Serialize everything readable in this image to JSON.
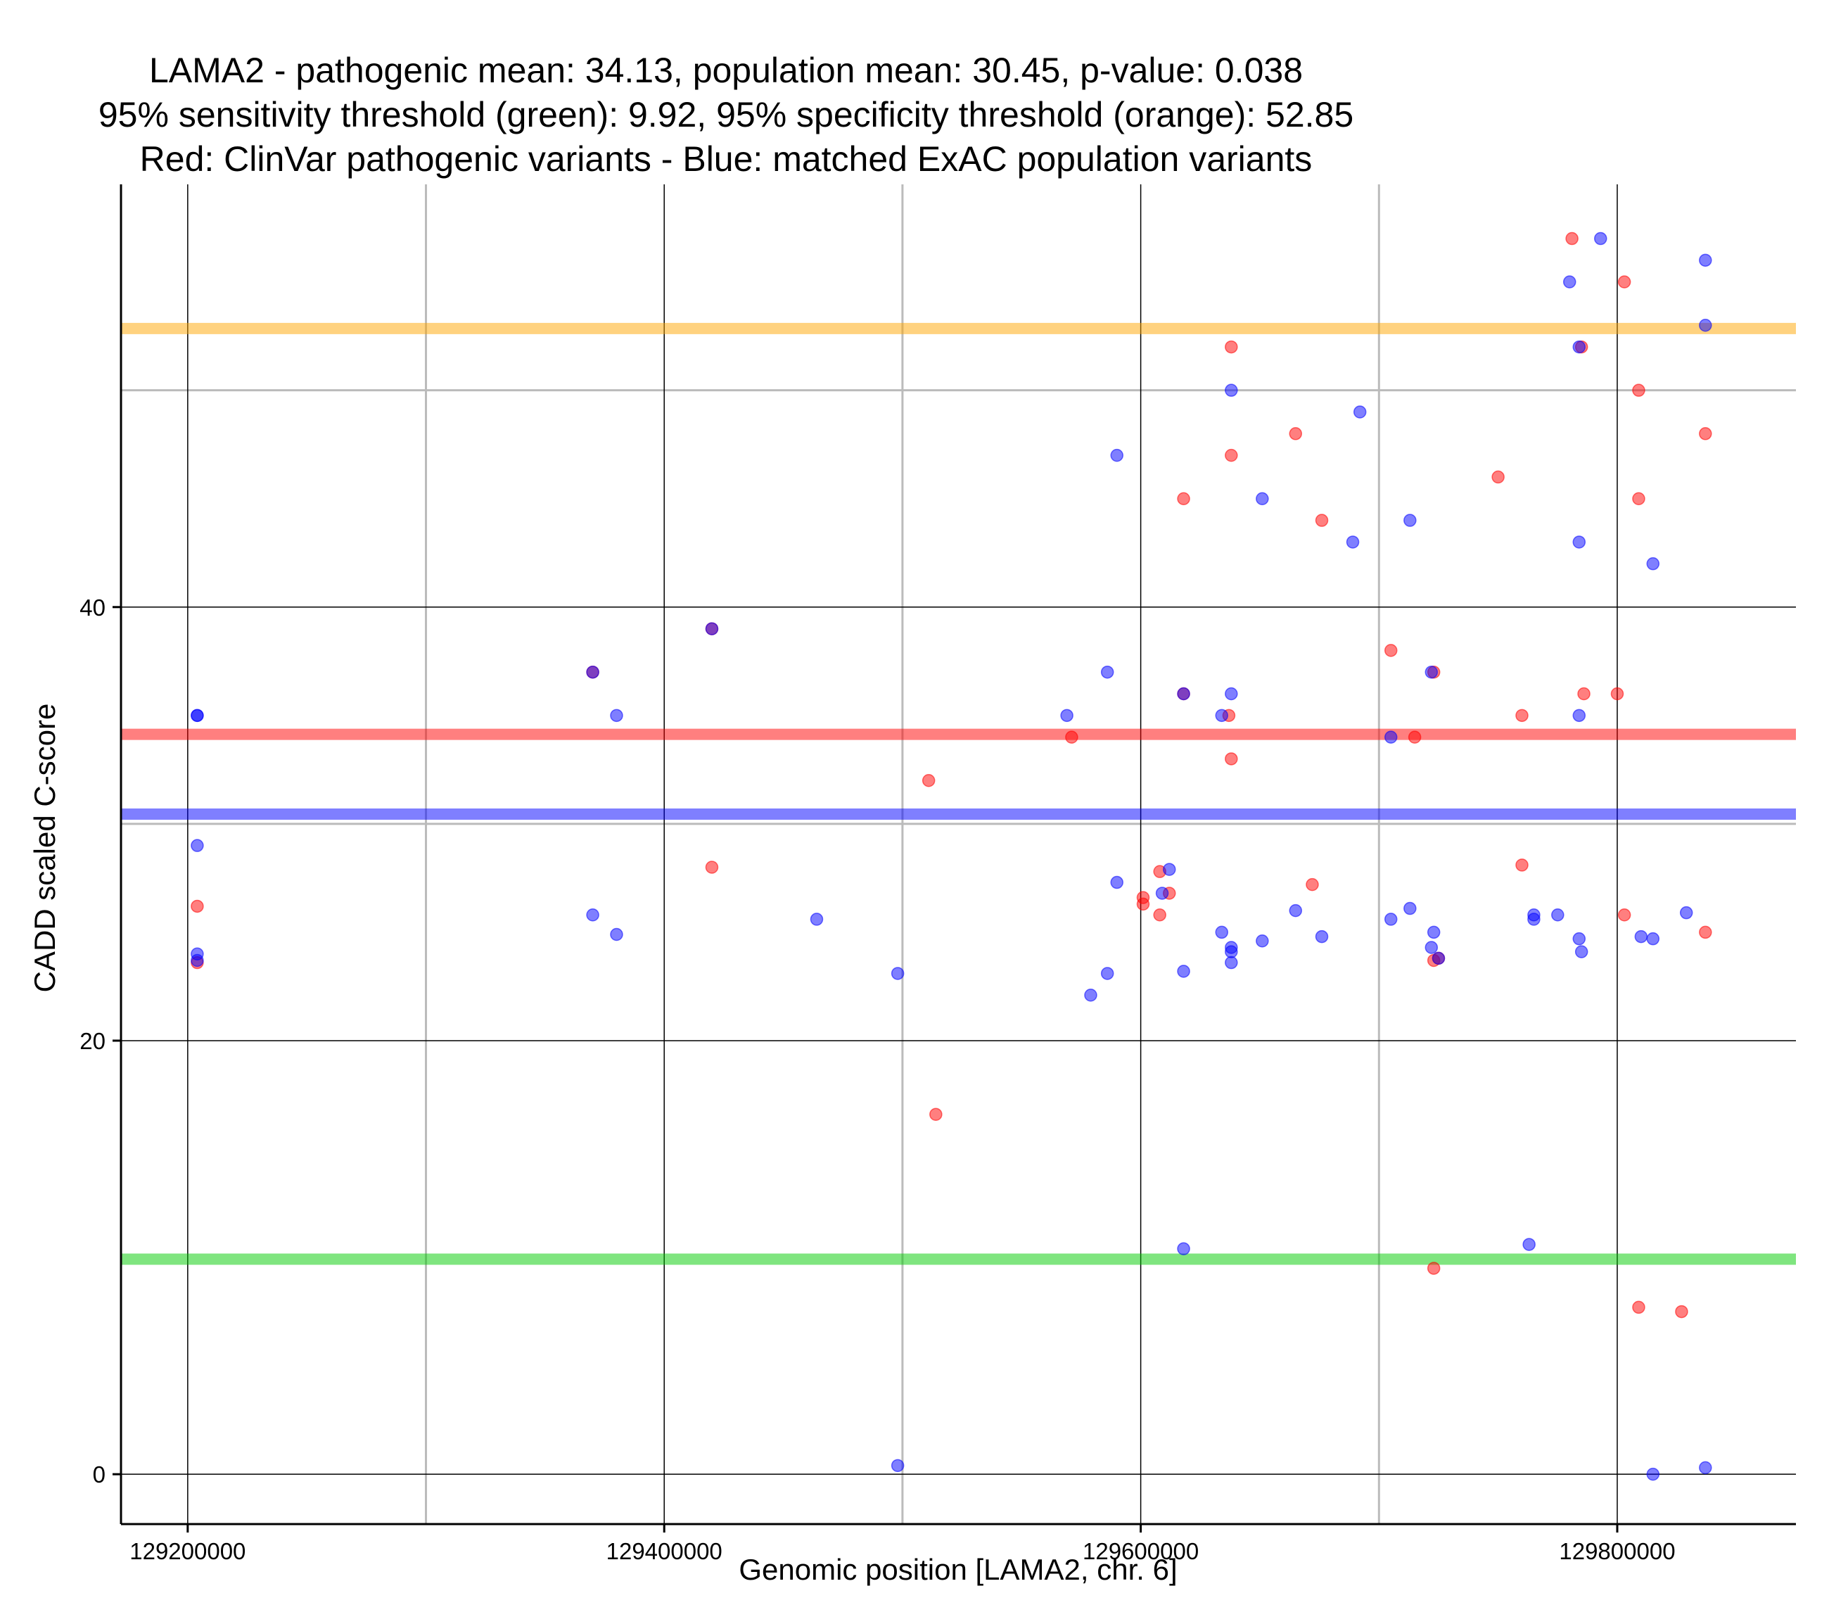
{
  "chart_data": {
    "type": "scatter",
    "title_lines": [
      "LAMA2 - pathogenic mean: 34.13, population mean: 30.45, p-value: 0.038",
      "95% sensitivity threshold (green): 9.92, 95% specificity threshold (orange): 52.85",
      "Red: ClinVar pathogenic variants - Blue: matched ExAC population variants"
    ],
    "xlabel": "Genomic position [LAMA2, chr. 6]",
    "ylabel": "CADD scaled C-score",
    "xlim": [
      129172000,
      129875000
    ],
    "ylim": [
      -2.3,
      59.5
    ],
    "x_major_ticks": [
      129200000,
      129400000,
      129600000,
      129800000
    ],
    "x_tick_labels": [
      "129200000",
      "129400000",
      "129600000",
      "129800000"
    ],
    "x_minor_gridlines": [
      129300000,
      129500000,
      129700000
    ],
    "y_major_ticks": [
      0,
      20,
      40
    ],
    "y_tick_labels": [
      "0",
      "20",
      "40"
    ],
    "y_minor_gridlines": [
      30,
      50
    ],
    "hlines": [
      {
        "name": "specificity-threshold",
        "value": 52.85,
        "color": "#FFA500"
      },
      {
        "name": "pathogenic-mean",
        "value": 34.13,
        "color": "#FF0000"
      },
      {
        "name": "population-mean",
        "value": 30.45,
        "color": "#0000FF"
      },
      {
        "name": "sensitivity-threshold",
        "value": 9.92,
        "color": "#00CC00"
      }
    ],
    "series": [
      {
        "name": "ClinVar pathogenic variants",
        "color": "#FF0000",
        "points": [
          [
            129204000,
            26.2
          ],
          [
            129204000,
            23.6
          ],
          [
            129370000,
            37
          ],
          [
            129420000,
            28
          ],
          [
            129420000,
            39
          ],
          [
            129511000,
            32
          ],
          [
            129514000,
            16.6
          ],
          [
            129571000,
            34
          ],
          [
            129601000,
            26.6
          ],
          [
            129601000,
            26.3
          ],
          [
            129608000,
            27.8
          ],
          [
            129608000,
            25.8
          ],
          [
            129612000,
            26.8
          ],
          [
            129618000,
            45
          ],
          [
            129618000,
            36
          ],
          [
            129637000,
            35
          ],
          [
            129638000,
            52
          ],
          [
            129638000,
            47
          ],
          [
            129638000,
            33
          ],
          [
            129665000,
            48
          ],
          [
            129672000,
            27.2
          ],
          [
            129676000,
            44
          ],
          [
            129705000,
            38
          ],
          [
            129715000,
            34
          ],
          [
            129723000,
            37
          ],
          [
            129723000,
            23.7
          ],
          [
            129723000,
            9.5
          ],
          [
            129725000,
            23.8
          ],
          [
            129750000,
            46
          ],
          [
            129760000,
            35
          ],
          [
            129760000,
            28.1
          ],
          [
            129781000,
            57
          ],
          [
            129785000,
            52
          ],
          [
            129786000,
            36
          ],
          [
            129800000,
            36
          ],
          [
            129803000,
            55
          ],
          [
            129803000,
            25.8
          ],
          [
            129809000,
            50
          ],
          [
            129809000,
            45
          ],
          [
            129809000,
            7.7
          ],
          [
            129827000,
            7.5
          ],
          [
            129837000,
            48
          ],
          [
            129837000,
            25
          ]
        ]
      },
      {
        "name": "matched ExAC population variants",
        "color": "#0000FF",
        "points": [
          [
            129204000,
            35
          ],
          [
            129204000,
            35
          ],
          [
            129204000,
            29
          ],
          [
            129204000,
            24
          ],
          [
            129204000,
            23.7
          ],
          [
            129370000,
            37
          ],
          [
            129370000,
            25.8
          ],
          [
            129380000,
            35
          ],
          [
            129380000,
            24.9
          ],
          [
            129420000,
            39
          ],
          [
            129464000,
            25.6
          ],
          [
            129498000,
            23.1
          ],
          [
            129498000,
            0.4
          ],
          [
            129569000,
            35
          ],
          [
            129579000,
            22.1
          ],
          [
            129586000,
            37
          ],
          [
            129586000,
            23.1
          ],
          [
            129590000,
            47
          ],
          [
            129590000,
            27.3
          ],
          [
            129609000,
            26.8
          ],
          [
            129612000,
            27.9
          ],
          [
            129618000,
            36
          ],
          [
            129618000,
            23.2
          ],
          [
            129618000,
            10.4
          ],
          [
            129634000,
            35
          ],
          [
            129634000,
            25
          ],
          [
            129638000,
            50
          ],
          [
            129638000,
            36
          ],
          [
            129638000,
            24.3
          ],
          [
            129638000,
            24.1
          ],
          [
            129638000,
            23.6
          ],
          [
            129651000,
            45
          ],
          [
            129651000,
            24.6
          ],
          [
            129665000,
            26
          ],
          [
            129676000,
            24.8
          ],
          [
            129689000,
            43
          ],
          [
            129692000,
            49
          ],
          [
            129705000,
            34
          ],
          [
            129705000,
            25.6
          ],
          [
            129713000,
            44
          ],
          [
            129713000,
            26.1
          ],
          [
            129722000,
            37
          ],
          [
            129722000,
            24.3
          ],
          [
            129723000,
            25
          ],
          [
            129725000,
            23.8
          ],
          [
            129763000,
            10.6
          ],
          [
            129765000,
            25.8
          ],
          [
            129765000,
            25.6
          ],
          [
            129775000,
            25.8
          ],
          [
            129780000,
            55
          ],
          [
            129784000,
            52
          ],
          [
            129784000,
            43
          ],
          [
            129784000,
            35
          ],
          [
            129784000,
            24.7
          ],
          [
            129785000,
            24.1
          ],
          [
            129793000,
            57
          ],
          [
            129810000,
            24.8
          ],
          [
            129815000,
            42
          ],
          [
            129815000,
            24.7
          ],
          [
            129815000,
            0
          ],
          [
            129829000,
            25.9
          ],
          [
            129837000,
            56
          ],
          [
            129837000,
            53
          ],
          [
            129837000,
            0.3
          ]
        ]
      }
    ]
  }
}
